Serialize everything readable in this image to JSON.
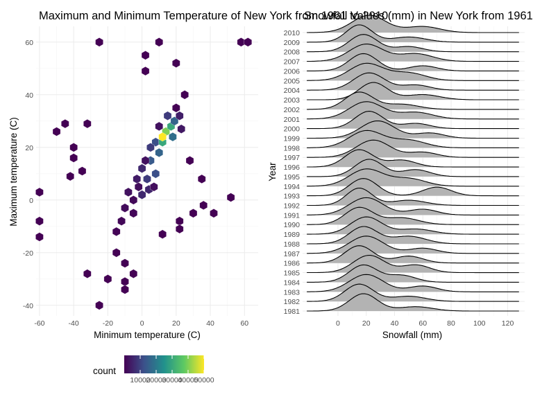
{
  "chart_data": [
    {
      "type": "hexbin",
      "title": "Maximum and Minimum Temperature of New York from 1961 to 2010",
      "xlabel": "Minimum temperature (C)",
      "ylabel": "Maximum temperature (C)",
      "xlim": [
        -62,
        68
      ],
      "ylim": [
        -44,
        66
      ],
      "xticks": [
        -60,
        -40,
        -20,
        0,
        20,
        40,
        60
      ],
      "yticks": [
        -40,
        -20,
        0,
        20,
        40,
        60
      ],
      "legend": {
        "title": "count",
        "position": "bottom",
        "range": [
          0,
          50000
        ],
        "tick_values": [
          10000,
          20000,
          30000,
          40000,
          50000
        ],
        "tick_labels": [
          "10000",
          "20000",
          "30000",
          "40000",
          "50000"
        ]
      },
      "hex_size": 2.6,
      "bins": [
        {
          "x": -25,
          "y": 60,
          "count": 1
        },
        {
          "x": 10,
          "y": 60,
          "count": 1
        },
        {
          "x": 58,
          "y": 60,
          "count": 1
        },
        {
          "x": 62,
          "y": 60,
          "count": 1
        },
        {
          "x": 2,
          "y": 55,
          "count": 1
        },
        {
          "x": 20,
          "y": 52,
          "count": 1
        },
        {
          "x": 2,
          "y": 49,
          "count": 1
        },
        {
          "x": -50,
          "y": 26,
          "count": 1
        },
        {
          "x": -45,
          "y": 29,
          "count": 1
        },
        {
          "x": -32,
          "y": 29,
          "count": 1
        },
        {
          "x": -40,
          "y": 20,
          "count": 1
        },
        {
          "x": -40,
          "y": 16,
          "count": 1
        },
        {
          "x": -35,
          "y": 11,
          "count": 1
        },
        {
          "x": -42,
          "y": 9,
          "count": 1
        },
        {
          "x": -60,
          "y": 3,
          "count": 1
        },
        {
          "x": -60,
          "y": -8,
          "count": 1
        },
        {
          "x": -60,
          "y": -14,
          "count": 1
        },
        {
          "x": 52,
          "y": 1,
          "count": 1
        },
        {
          "x": 36,
          "y": -2,
          "count": 1
        },
        {
          "x": 42,
          "y": -5,
          "count": 1
        },
        {
          "x": 22,
          "y": -8,
          "count": 1
        },
        {
          "x": 22,
          "y": -11,
          "count": 1
        },
        {
          "x": 12,
          "y": -13,
          "count": 1
        },
        {
          "x": -15,
          "y": -20,
          "count": 1
        },
        {
          "x": -10,
          "y": -24,
          "count": 1
        },
        {
          "x": -32,
          "y": -28,
          "count": 1
        },
        {
          "x": -20,
          "y": -30,
          "count": 1
        },
        {
          "x": -10,
          "y": -31,
          "count": 1
        },
        {
          "x": -10,
          "y": -34,
          "count": 1
        },
        {
          "x": -25,
          "y": -40,
          "count": 1
        },
        {
          "x": -5,
          "y": -28,
          "count": 1
        },
        {
          "x": 20,
          "y": 35,
          "count": 1
        },
        {
          "x": 25,
          "y": 40,
          "count": 1
        },
        {
          "x": 28,
          "y": 15,
          "count": 1
        },
        {
          "x": 35,
          "y": 8,
          "count": 1
        },
        {
          "x": 30,
          "y": -5,
          "count": 1
        },
        {
          "x": -5,
          "y": 0,
          "count": 1200
        },
        {
          "x": 0,
          "y": 2,
          "count": 6000
        },
        {
          "x": -5,
          "y": -5,
          "count": 800
        },
        {
          "x": 3,
          "y": 8,
          "count": 9000
        },
        {
          "x": 8,
          "y": 10,
          "count": 12000
        },
        {
          "x": 4,
          "y": 4,
          "count": 5500
        },
        {
          "x": 5,
          "y": 15,
          "count": 14000
        },
        {
          "x": 10,
          "y": 18,
          "count": 16000
        },
        {
          "x": 8,
          "y": 22,
          "count": 12000
        },
        {
          "x": 12,
          "y": 22,
          "count": 30000
        },
        {
          "x": 14,
          "y": 26,
          "count": 40000
        },
        {
          "x": 12,
          "y": 24,
          "count": 55000
        },
        {
          "x": 17,
          "y": 28,
          "count": 30000
        },
        {
          "x": 18,
          "y": 24,
          "count": 18000
        },
        {
          "x": 19,
          "y": 30,
          "count": 16000
        },
        {
          "x": 15,
          "y": 32,
          "count": 9000
        },
        {
          "x": 5,
          "y": 20,
          "count": 9000
        },
        {
          "x": 0,
          "y": 12,
          "count": 6000
        },
        {
          "x": -3,
          "y": 8,
          "count": 4000
        },
        {
          "x": -8,
          "y": 3,
          "count": 2500
        },
        {
          "x": -10,
          "y": -3,
          "count": 1500
        },
        {
          "x": -12,
          "y": -8,
          "count": 900
        },
        {
          "x": -15,
          "y": -12,
          "count": 500
        },
        {
          "x": 22,
          "y": 32,
          "count": 4500
        },
        {
          "x": 10,
          "y": 28,
          "count": 2500
        },
        {
          "x": 23,
          "y": 27,
          "count": 3500
        },
        {
          "x": 2,
          "y": 15,
          "count": 2500
        },
        {
          "x": -2,
          "y": 5,
          "count": 2000
        },
        {
          "x": 7,
          "y": 5,
          "count": 2000
        }
      ]
    },
    {
      "type": "ridgeline",
      "title": "Snowfall Values (mm) in New York from 1961 to 2010",
      "xlabel": "Snowfall (mm)",
      "ylabel": "Year",
      "xlim": [
        -25,
        132
      ],
      "xticks": [
        0,
        20,
        40,
        60,
        80,
        100,
        120
      ],
      "x_range": [
        -22,
        128
      ],
      "series": [
        {
          "name": "1981",
          "peaks": [
            [
              18,
              10,
              1.0
            ],
            [
              55,
              12,
              0.25
            ]
          ]
        },
        {
          "name": "1982",
          "peaks": [
            [
              15,
              10,
              1.0
            ],
            [
              50,
              12,
              0.3
            ]
          ]
        },
        {
          "name": "1983",
          "peaks": [
            [
              20,
              12,
              0.9
            ],
            [
              60,
              10,
              0.3
            ]
          ]
        },
        {
          "name": "1984",
          "peaks": [
            [
              18,
              10,
              1.0
            ],
            [
              45,
              10,
              0.4
            ]
          ]
        },
        {
          "name": "1985",
          "peaks": [
            [
              22,
              11,
              0.9
            ],
            [
              55,
              10,
              0.4
            ]
          ]
        },
        {
          "name": "1986",
          "peaks": [
            [
              15,
              10,
              1.0
            ],
            [
              50,
              10,
              0.4
            ]
          ]
        },
        {
          "name": "1987",
          "peaks": [
            [
              20,
              12,
              1.0
            ],
            [
              60,
              10,
              0.3
            ]
          ]
        },
        {
          "name": "1988",
          "peaks": [
            [
              18,
              10,
              0.9
            ],
            [
              50,
              12,
              0.4
            ]
          ]
        },
        {
          "name": "1989",
          "peaks": [
            [
              20,
              11,
              1.0
            ],
            [
              55,
              12,
              0.3
            ]
          ]
        },
        {
          "name": "1990",
          "peaks": [
            [
              15,
              10,
              1.0
            ],
            [
              45,
              12,
              0.4
            ]
          ]
        },
        {
          "name": "1991",
          "peaks": [
            [
              20,
              12,
              0.9
            ],
            [
              60,
              10,
              0.3
            ]
          ]
        },
        {
          "name": "1992",
          "peaks": [
            [
              15,
              9,
              1.0
            ],
            [
              50,
              12,
              0.3
            ]
          ]
        },
        {
          "name": "1993",
          "peaks": [
            [
              18,
              10,
              1.0
            ],
            [
              70,
              10,
              0.5
            ]
          ]
        },
        {
          "name": "1994",
          "peaks": [
            [
              20,
              12,
              0.9
            ],
            [
              50,
              12,
              0.4
            ]
          ]
        },
        {
          "name": "1995",
          "peaks": [
            [
              22,
              10,
              1.0
            ],
            [
              55,
              10,
              0.4
            ]
          ]
        },
        {
          "name": "1996",
          "peaks": [
            [
              15,
              10,
              1.0
            ],
            [
              45,
              10,
              0.4
            ]
          ]
        },
        {
          "name": "1997",
          "peaks": [
            [
              25,
              12,
              1.0
            ],
            [
              60,
              10,
              0.3
            ]
          ]
        },
        {
          "name": "1998",
          "peaks": [
            [
              20,
              12,
              0.9
            ],
            [
              50,
              12,
              0.4
            ]
          ]
        },
        {
          "name": "1999",
          "peaks": [
            [
              28,
              12,
              1.0
            ],
            [
              65,
              10,
              0.3
            ]
          ]
        },
        {
          "name": "2000",
          "peaks": [
            [
              22,
              10,
              1.0
            ],
            [
              55,
              10,
              0.3
            ]
          ]
        },
        {
          "name": "2001",
          "peaks": [
            [
              20,
              12,
              0.9
            ],
            [
              55,
              12,
              0.35
            ]
          ]
        },
        {
          "name": "2002",
          "peaks": [
            [
              15,
              10,
              1.0
            ],
            [
              45,
              12,
              0.3
            ]
          ]
        },
        {
          "name": "2003",
          "peaks": [
            [
              25,
              10,
              1.0
            ],
            [
              60,
              12,
              0.3
            ]
          ]
        },
        {
          "name": "2004",
          "peaks": [
            [
              22,
              11,
              1.0
            ],
            [
              55,
              10,
              0.3
            ]
          ]
        },
        {
          "name": "2005",
          "peaks": [
            [
              20,
              12,
              0.9
            ],
            [
              50,
              12,
              0.4
            ]
          ]
        },
        {
          "name": "2006",
          "peaks": [
            [
              18,
              10,
              1.0
            ],
            [
              60,
              10,
              0.3
            ]
          ]
        },
        {
          "name": "2007",
          "peaks": [
            [
              20,
              12,
              0.9
            ],
            [
              55,
              12,
              0.4
            ]
          ]
        },
        {
          "name": "2008",
          "peaks": [
            [
              18,
              10,
              1.0
            ],
            [
              50,
              10,
              0.3
            ]
          ]
        },
        {
          "name": "2009",
          "peaks": [
            [
              15,
              9,
              1.0
            ],
            [
              50,
              12,
              0.3
            ]
          ]
        },
        {
          "name": "2010",
          "peaks": [
            [
              22,
              12,
              1.0
            ],
            [
              60,
              12,
              0.35
            ]
          ]
        }
      ]
    }
  ]
}
